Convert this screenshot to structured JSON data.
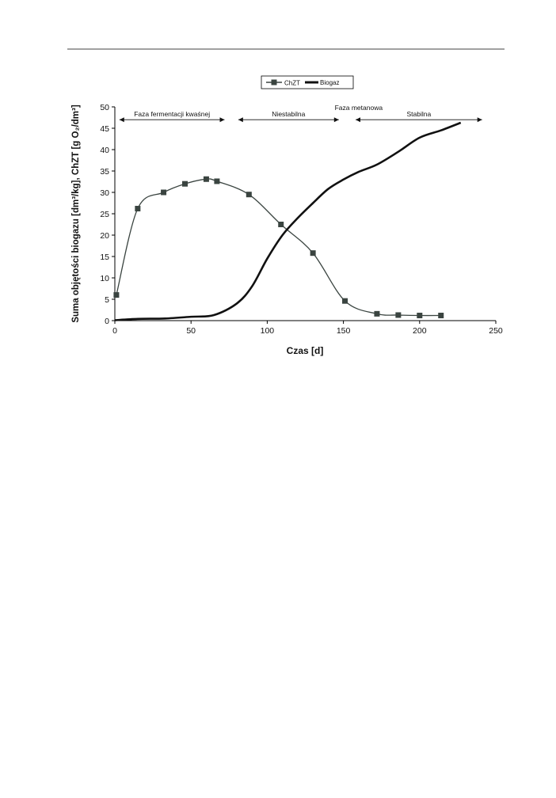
{
  "chart_data": {
    "type": "line",
    "title": "",
    "xlabel": "Czas [d]",
    "ylabel": "Suma objętości biogazu [dm³/kg], ChZT [g O₂/dm³]",
    "xlim": [
      0,
      250
    ],
    "ylim": [
      0,
      50
    ],
    "xticks": [
      0,
      50,
      100,
      150,
      200,
      250
    ],
    "yticks": [
      0,
      5,
      10,
      15,
      20,
      25,
      30,
      35,
      40,
      45,
      50
    ],
    "grid": false,
    "legend_position": "top-center",
    "series": [
      {
        "name": "ChZT",
        "color": "#3a4440",
        "markers": true,
        "x": [
          1,
          15,
          32,
          46,
          60,
          67,
          88,
          109,
          130,
          151,
          172,
          186,
          200,
          214
        ],
        "y": [
          6,
          26.2,
          30,
          32,
          33.1,
          32.6,
          29.5,
          22.5,
          15.8,
          4.6,
          1.6,
          1.3,
          1.2,
          1.2
        ]
      },
      {
        "name": "Biogaz",
        "color": "#111111",
        "markers": false,
        "x": [
          0,
          15,
          33,
          50,
          65,
          80,
          90,
          100,
          110,
          120,
          130,
          140,
          150,
          160,
          172,
          186,
          200,
          214,
          227
        ],
        "y": [
          0.1,
          0.4,
          0.5,
          0.9,
          1.3,
          4,
          8,
          14.5,
          20,
          24,
          27.5,
          30.8,
          33,
          34.8,
          36.5,
          39.5,
          42.8,
          44.5,
          46.3
        ]
      }
    ],
    "annotations": [
      {
        "text": "Faza fermentacji kwaśnej",
        "x_range": [
          3,
          72
        ],
        "y": 47
      },
      {
        "text": "Niestabilna",
        "x_range": [
          81,
          147
        ],
        "y": 47
      },
      {
        "text": "Stabilna",
        "x_range": [
          158,
          241
        ],
        "y": 47
      },
      {
        "text": "Faza metanowa",
        "x": 160,
        "y": 49.3
      }
    ]
  }
}
